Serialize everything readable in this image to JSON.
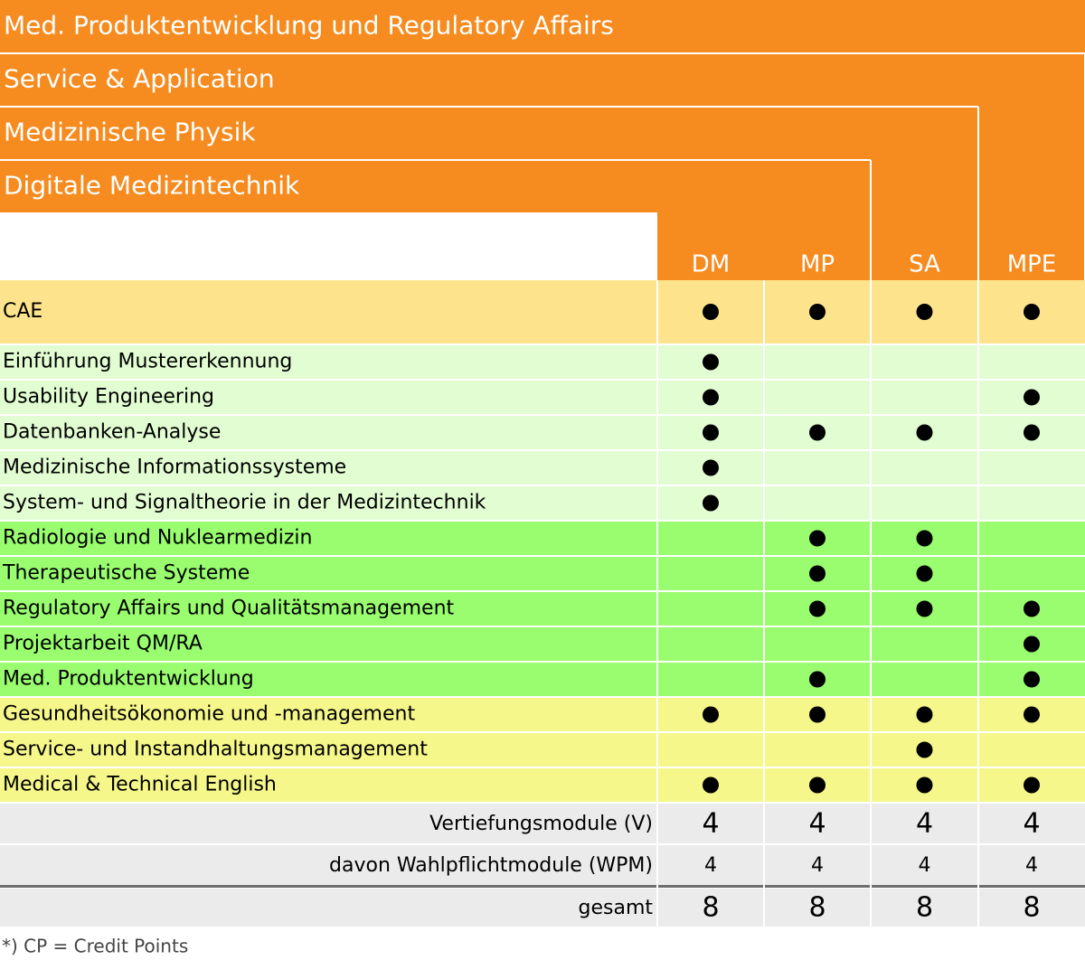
{
  "header": {
    "bands": [
      "Med. Produktentwicklung und Regulatory Affairs",
      "Service & Application",
      "Medizinische Physik",
      "Digitale Medizintechnik"
    ],
    "columns": [
      "DM",
      "MP",
      "SA",
      "MPE"
    ],
    "color": "#f68b1f"
  },
  "sections": [
    {
      "color": "#fde48c",
      "rows": [
        {
          "label": "CAE",
          "dots": [
            true,
            true,
            true,
            true
          ]
        }
      ]
    },
    {
      "color": "#e2fdd2",
      "rows": [
        {
          "label": "Einführung Mustererkennung",
          "dots": [
            true,
            false,
            false,
            false
          ]
        },
        {
          "label": "Usability Engineering",
          "dots": [
            true,
            false,
            false,
            true
          ]
        },
        {
          "label": "Datenbanken-Analyse",
          "dots": [
            true,
            true,
            true,
            true
          ]
        },
        {
          "label": "Medizinische Informationssysteme",
          "dots": [
            true,
            false,
            false,
            false
          ]
        },
        {
          "label": "System- und Signaltheorie in der Medizintechnik",
          "dots": [
            true,
            false,
            false,
            false
          ]
        }
      ]
    },
    {
      "color": "#99fd6f",
      "rows": [
        {
          "label": "Radiologie und Nuklearmedizin",
          "dots": [
            false,
            true,
            true,
            false
          ]
        },
        {
          "label": "Therapeutische Systeme",
          "dots": [
            false,
            true,
            true,
            false
          ]
        },
        {
          "label": "Regulatory Affairs und Qualitätsmanagement",
          "dots": [
            false,
            true,
            true,
            true
          ]
        },
        {
          "label": "Projektarbeit QM/RA",
          "dots": [
            false,
            false,
            false,
            true
          ]
        },
        {
          "label": "Med. Produktentwicklung",
          "dots": [
            false,
            true,
            false,
            true
          ]
        }
      ]
    },
    {
      "color": "#f6f78a",
      "rows": [
        {
          "label": "Gesundheitsökonomie und -management",
          "dots": [
            true,
            true,
            true,
            true
          ]
        },
        {
          "label": "Service- und Instandhaltungsmanagement",
          "dots": [
            false,
            false,
            true,
            false
          ]
        },
        {
          "label": "Medical & Technical English",
          "dots": [
            true,
            true,
            true,
            true
          ]
        }
      ]
    }
  ],
  "summary": {
    "color": "#ebebeb",
    "rows": [
      {
        "label": "Vertiefungsmodule (V)",
        "values": [
          4,
          4,
          4,
          4
        ]
      },
      {
        "label": "davon Wahlpflichtmodule (WPM)",
        "values": [
          4,
          4,
          4,
          4
        ]
      },
      {
        "label": "gesamt",
        "values": [
          8,
          8,
          8,
          8
        ]
      }
    ]
  },
  "footnote": "*) CP = Credit Points"
}
